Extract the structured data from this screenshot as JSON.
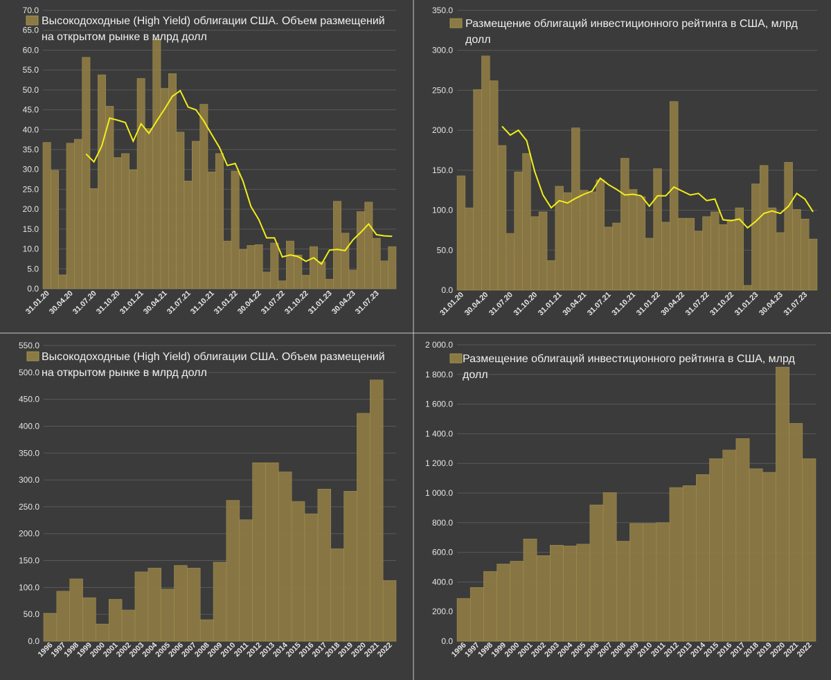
{
  "colors": {
    "background": "#3b3b3b",
    "bar": "#8c7a44",
    "bar_edge": "#a39152",
    "trend": "#f2ee1a",
    "grid": "#5a5a5a",
    "text": "#e6e6e6"
  },
  "chart_data": [
    {
      "id": "hy_monthly",
      "type": "bar",
      "title": "",
      "legend_entries": [
        "Высокодоходные (High Yield) облигации США. Объем размещений на открытом рынке в млрд долл"
      ],
      "legend_lines": [
        "Высокодоходные (High Yield) облигации США. Объем размещений",
        "на открытом рынке в млрд долл"
      ],
      "y_ticks": [
        "0.0",
        "5.0",
        "10.0",
        "15.0",
        "20.0",
        "25.0",
        "30.0",
        "35.0",
        "40.0",
        "45.0",
        "50.0",
        "55.0",
        "60.0",
        "65.0",
        "70.0"
      ],
      "ylim": [
        0,
        70
      ],
      "x_labels": [
        {
          "index": 0,
          "text": "31.01.20"
        },
        {
          "index": 3,
          "text": "30.04.20"
        },
        {
          "index": 6,
          "text": "31.07.20"
        },
        {
          "index": 9,
          "text": "31.10.20"
        },
        {
          "index": 12,
          "text": "31.01.21"
        },
        {
          "index": 15,
          "text": "30.04.21"
        },
        {
          "index": 18,
          "text": "31.07.21"
        },
        {
          "index": 21,
          "text": "31.10.21"
        },
        {
          "index": 24,
          "text": "31.01.22"
        },
        {
          "index": 27,
          "text": "30.04.22"
        },
        {
          "index": 30,
          "text": "31.07.22"
        },
        {
          "index": 33,
          "text": "31.10.22"
        },
        {
          "index": 36,
          "text": "31.01.23"
        },
        {
          "index": 39,
          "text": "30.04.23"
        },
        {
          "index": 42,
          "text": "31.07.23"
        }
      ],
      "values": [
        36.8,
        29.8,
        3.5,
        36.6,
        37.6,
        58.2,
        25.2,
        53.8,
        45.9,
        33.0,
        34.0,
        29.9,
        52.9,
        40.3,
        62.8,
        50.4,
        54.1,
        39.4,
        27.1,
        37.1,
        46.4,
        29.4,
        34.0,
        12.0,
        29.6,
        9.9,
        10.9,
        11.1,
        4.2,
        11.5,
        2.0,
        12.0,
        8.5,
        3.4,
        10.6,
        6.8,
        2.4,
        22.0,
        14.0,
        4.7,
        19.4,
        21.8,
        12.7,
        7.0,
        10.6
      ],
      "trend": [
        null,
        null,
        null,
        null,
        null,
        33.9,
        31.9,
        35.9,
        42.9,
        42.4,
        41.8,
        37.1,
        41.5,
        39.1,
        42.2,
        45.2,
        48.4,
        49.8,
        45.7,
        45.0,
        42.2,
        38.8,
        35.5,
        31.0,
        31.5,
        27.0,
        20.7,
        17.4,
        12.8,
        12.8,
        8.0,
        8.5,
        8.1,
        6.9,
        7.8,
        6.2,
        9.7,
        9.9,
        9.6,
        12.3,
        14.2,
        16.3,
        13.6,
        13.3,
        13.2
      ]
    },
    {
      "id": "ig_monthly",
      "type": "bar",
      "title": "",
      "legend_entries": [
        "Размещение облигаций инвестиционного рейтинга в США, млрд долл"
      ],
      "legend_lines": [
        "Размещение облигаций инвестиционного рейтинга в США, млрд",
        "долл"
      ],
      "y_ticks": [
        "0.0",
        "50.0",
        "100.0",
        "150.0",
        "200.0",
        "250.0",
        "300.0",
        "350.0"
      ],
      "ylim": [
        0,
        350
      ],
      "x_labels": [
        {
          "index": 0,
          "text": "31.01.20"
        },
        {
          "index": 3,
          "text": "30.04.20"
        },
        {
          "index": 6,
          "text": "31.07.20"
        },
        {
          "index": 9,
          "text": "31.10.20"
        },
        {
          "index": 12,
          "text": "31.01.21"
        },
        {
          "index": 15,
          "text": "30.04.21"
        },
        {
          "index": 18,
          "text": "31.07.21"
        },
        {
          "index": 21,
          "text": "31.10.21"
        },
        {
          "index": 24,
          "text": "31.01.22"
        },
        {
          "index": 27,
          "text": "30.04.22"
        },
        {
          "index": 30,
          "text": "31.07.22"
        },
        {
          "index": 33,
          "text": "31.10.22"
        },
        {
          "index": 36,
          "text": "31.01.23"
        },
        {
          "index": 39,
          "text": "30.04.23"
        },
        {
          "index": 42,
          "text": "31.07.23"
        }
      ],
      "values": [
        143,
        103,
        251,
        293,
        262,
        181,
        71,
        148,
        171,
        92,
        98,
        37,
        130,
        122,
        203,
        125,
        123,
        138,
        79,
        84,
        165,
        126,
        117,
        65,
        152,
        85,
        236,
        90,
        90,
        74,
        92,
        98,
        82,
        88,
        103,
        6,
        133,
        156,
        103,
        72,
        160,
        101,
        89,
        64
      ],
      "trend": [
        null,
        null,
        null,
        null,
        null,
        205,
        194,
        200,
        187,
        148,
        119,
        103,
        112,
        109,
        115,
        120,
        124,
        140,
        132,
        126,
        119,
        120,
        118,
        105,
        118,
        118,
        129,
        124,
        119,
        121,
        112,
        114,
        88,
        87,
        89,
        78,
        86,
        96,
        99,
        96,
        105,
        121,
        114,
        98
      ]
    },
    {
      "id": "hy_annual",
      "type": "bar",
      "title": "",
      "legend_entries": [
        "Высокодоходные (High Yield) облигации США. Объем размещений на открытом рынке в млрд долл"
      ],
      "legend_lines": [
        "Высокодоходные (High Yield) облигации США. Объем размещений",
        "на открытом рынке в млрд долл"
      ],
      "y_ticks": [
        "0.0",
        "50.0",
        "100.0",
        "150.0",
        "200.0",
        "250.0",
        "300.0",
        "350.0",
        "400.0",
        "450.0",
        "500.0",
        "550.0"
      ],
      "ylim": [
        0,
        550
      ],
      "categories": [
        "1996",
        "1997",
        "1998",
        "1999",
        "2000",
        "2001",
        "2002",
        "2003",
        "2004",
        "2005",
        "2006",
        "2007",
        "2008",
        "2009",
        "2010",
        "2011",
        "2012",
        "2013",
        "2014",
        "2015",
        "2016",
        "2017",
        "2018",
        "2019",
        "2020",
        "2021",
        "2022"
      ],
      "values": [
        52,
        93,
        116,
        81,
        32,
        78,
        58,
        129,
        136,
        97,
        141,
        136,
        40,
        147,
        262,
        226,
        332,
        332,
        315,
        260,
        237,
        283,
        172,
        279,
        424,
        486,
        113
      ]
    },
    {
      "id": "ig_annual",
      "type": "bar",
      "title": "",
      "legend_entries": [
        "Размещение облигаций инвестиционного рейтинга в США, млрд долл"
      ],
      "legend_lines": [
        "Размещение облигаций инвестиционного рейтинга в США, млрд",
        "долл"
      ],
      "y_ticks": [
        "0.0",
        "200.0",
        "400.0",
        "600.0",
        "800.0",
        "1 000.0",
        "1 200.0",
        "1 400.0",
        "1 600.0",
        "1 800.0",
        "2 000.0"
      ],
      "ylim": [
        0,
        2000
      ],
      "categories": [
        "1996",
        "1997",
        "1998",
        "1999",
        "2000",
        "2001",
        "2002",
        "2003",
        "2004",
        "2005",
        "2006",
        "2007",
        "2008",
        "2009",
        "2010",
        "2011",
        "2012",
        "2013",
        "2014",
        "2015",
        "2016",
        "2017",
        "2018",
        "2019",
        "2020",
        "2021",
        "2022"
      ],
      "values": [
        289,
        363,
        471,
        521,
        540,
        690,
        578,
        648,
        643,
        655,
        920,
        1003,
        675,
        795,
        795,
        800,
        1037,
        1050,
        1125,
        1232,
        1290,
        1368,
        1164,
        1140,
        1850,
        1470,
        1232
      ]
    }
  ]
}
